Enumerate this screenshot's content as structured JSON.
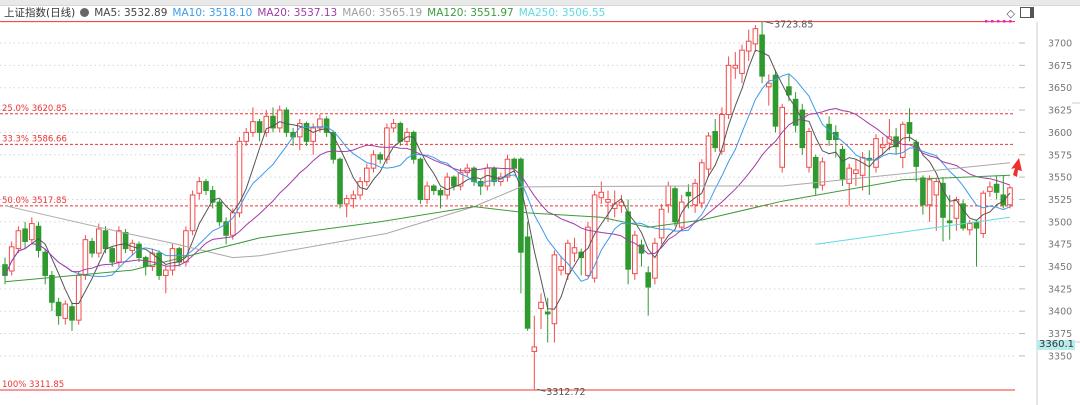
{
  "legend": {
    "title": "上证指数(日线)",
    "ma5": "MA5: 3532.89",
    "ma10": "MA10: 3518.10",
    "ma20": "MA20: 3537.13",
    "ma60": "MA60: 3565.19",
    "ma120": "MA120: 3551.97",
    "ma250": "MA250: 3506.55"
  },
  "price_tag": "3360.1",
  "chart_data": {
    "type": "candlestick",
    "title": "上证指数(日线)",
    "ylim": [
      3330,
      3735
    ],
    "y_ticks": [
      3350,
      3375,
      3400,
      3425,
      3450,
      3475,
      3500,
      3525,
      3550,
      3575,
      3600,
      3625,
      3650,
      3675,
      3700
    ],
    "grid": "horizontal-dotted",
    "colors": {
      "up": "#f24b4b",
      "down": "#2f9a2f",
      "ma5": "#555555",
      "ma10": "#3d9be9",
      "ma20": "#a23ba8",
      "ma60": "#a9a9a9",
      "ma120": "#3c9b3c",
      "ma250": "#5fd9e2",
      "fib": "#ee3333"
    },
    "fibonacci": [
      {
        "label": "",
        "value": 3723.85,
        "style": "solid"
      },
      {
        "label": "25.0% 3620.85",
        "value": 3620.85,
        "style": "dashed"
      },
      {
        "label": "33.3% 3586.66",
        "value": 3586.66,
        "style": "dashed"
      },
      {
        "label": "50.0% 3517.85",
        "value": 3517.85,
        "style": "dashed"
      },
      {
        "label": "100% 3311.85",
        "value": 3311.85,
        "style": "solid"
      }
    ],
    "annotations": [
      {
        "text": "3723.85",
        "bar": 113,
        "value": 3723.85
      },
      {
        "text": "3312.72",
        "bar": 79,
        "value": 3312.72
      }
    ],
    "ohlc": [
      [
        3452,
        3460,
        3430,
        3440
      ],
      [
        3445,
        3478,
        3440,
        3472
      ],
      [
        3470,
        3495,
        3465,
        3490
      ],
      [
        3492,
        3500,
        3470,
        3478
      ],
      [
        3480,
        3505,
        3475,
        3498
      ],
      [
        3495,
        3500,
        3460,
        3468
      ],
      [
        3466,
        3470,
        3430,
        3440
      ],
      [
        3440,
        3445,
        3400,
        3410
      ],
      [
        3410,
        3415,
        3385,
        3395
      ],
      [
        3392,
        3412,
        3385,
        3408
      ],
      [
        3405,
        3410,
        3378,
        3390
      ],
      [
        3390,
        3445,
        3385,
        3440
      ],
      [
        3440,
        3485,
        3435,
        3480
      ],
      [
        3478,
        3482,
        3460,
        3465
      ],
      [
        3465,
        3498,
        3460,
        3492
      ],
      [
        3490,
        3495,
        3465,
        3470
      ],
      [
        3470,
        3472,
        3450,
        3455
      ],
      [
        3455,
        3495,
        3450,
        3490
      ],
      [
        3488,
        3492,
        3465,
        3470
      ],
      [
        3468,
        3480,
        3462,
        3476
      ],
      [
        3475,
        3478,
        3455,
        3460
      ],
      [
        3460,
        3462,
        3440,
        3450
      ],
      [
        3450,
        3470,
        3445,
        3465
      ],
      [
        3465,
        3468,
        3435,
        3440
      ],
      [
        3440,
        3450,
        3420,
        3446
      ],
      [
        3446,
        3475,
        3440,
        3470
      ],
      [
        3470,
        3472,
        3450,
        3455
      ],
      [
        3455,
        3495,
        3450,
        3490
      ],
      [
        3490,
        3535,
        3485,
        3530
      ],
      [
        3532,
        3550,
        3525,
        3545
      ],
      [
        3545,
        3548,
        3530,
        3535
      ],
      [
        3535,
        3540,
        3515,
        3522
      ],
      [
        3522,
        3525,
        3495,
        3500
      ],
      [
        3500,
        3505,
        3475,
        3485
      ],
      [
        3485,
        3515,
        3480,
        3510
      ],
      [
        3510,
        3595,
        3505,
        3590
      ],
      [
        3590,
        3605,
        3585,
        3600
      ],
      [
        3600,
        3628,
        3595,
        3612
      ],
      [
        3612,
        3615,
        3590,
        3600
      ],
      [
        3600,
        3625,
        3595,
        3618
      ],
      [
        3618,
        3628,
        3600,
        3605
      ],
      [
        3605,
        3630,
        3600,
        3625
      ],
      [
        3625,
        3628,
        3595,
        3600
      ],
      [
        3600,
        3605,
        3585,
        3595
      ],
      [
        3595,
        3615,
        3580,
        3610
      ],
      [
        3610,
        3612,
        3585,
        3590
      ],
      [
        3590,
        3610,
        3575,
        3605
      ],
      [
        3605,
        3620,
        3600,
        3615
      ],
      [
        3615,
        3618,
        3595,
        3600
      ],
      [
        3600,
        3602,
        3565,
        3570
      ],
      [
        3570,
        3572,
        3515,
        3520
      ],
      [
        3520,
        3530,
        3505,
        3526
      ],
      [
        3526,
        3535,
        3515,
        3530
      ],
      [
        3530,
        3550,
        3525,
        3545
      ],
      [
        3545,
        3565,
        3540,
        3560
      ],
      [
        3560,
        3580,
        3555,
        3575
      ],
      [
        3575,
        3578,
        3565,
        3570
      ],
      [
        3570,
        3610,
        3565,
        3605
      ],
      [
        3605,
        3615,
        3600,
        3610
      ],
      [
        3610,
        3612,
        3585,
        3590
      ],
      [
        3590,
        3605,
        3585,
        3600
      ],
      [
        3600,
        3602,
        3565,
        3570
      ],
      [
        3570,
        3572,
        3520,
        3525
      ],
      [
        3525,
        3545,
        3520,
        3540
      ],
      [
        3540,
        3542,
        3530,
        3535
      ],
      [
        3535,
        3538,
        3515,
        3530
      ],
      [
        3530,
        3555,
        3525,
        3550
      ],
      [
        3550,
        3552,
        3535,
        3540
      ],
      [
        3540,
        3560,
        3535,
        3555
      ],
      [
        3555,
        3565,
        3550,
        3560
      ],
      [
        3560,
        3562,
        3540,
        3545
      ],
      [
        3545,
        3548,
        3530,
        3540
      ],
      [
        3540,
        3565,
        3535,
        3560
      ],
      [
        3560,
        3562,
        3540,
        3545
      ],
      [
        3545,
        3555,
        3540,
        3550
      ],
      [
        3550,
        3575,
        3545,
        3570
      ],
      [
        3570,
        3572,
        3555,
        3560
      ],
      [
        3570,
        3572,
        3420,
        3466
      ],
      [
        3483,
        3500,
        3378,
        3381
      ],
      [
        3355,
        3395,
        3312.72,
        3360
      ],
      [
        3403,
        3420,
        3380,
        3410
      ],
      [
        3399,
        3415,
        3365,
        3397
      ],
      [
        3386,
        3468,
        3365,
        3463
      ],
      [
        3446,
        3462,
        3440,
        3450
      ],
      [
        3442,
        3480,
        3435,
        3476
      ],
      [
        3465,
        3482,
        3455,
        3471
      ],
      [
        3466,
        3470,
        3440,
        3460
      ],
      [
        3440,
        3500,
        3438,
        3494
      ],
      [
        3437,
        3535,
        3432,
        3530
      ],
      [
        3527,
        3545,
        3520,
        3533
      ],
      [
        3522,
        3535,
        3500,
        3525
      ],
      [
        3515,
        3535,
        3505,
        3520
      ],
      [
        3518,
        3530,
        3510,
        3522
      ],
      [
        3511,
        3525,
        3430,
        3447
      ],
      [
        3442,
        3490,
        3435,
        3485
      ],
      [
        3474,
        3480,
        3450,
        3465
      ],
      [
        3443,
        3450,
        3395,
        3427
      ],
      [
        3437,
        3482,
        3430,
        3476
      ],
      [
        3482,
        3520,
        3475,
        3514
      ],
      [
        3519,
        3545,
        3510,
        3540
      ],
      [
        3537,
        3540,
        3495,
        3500
      ],
      [
        3494,
        3530,
        3490,
        3522
      ],
      [
        3533,
        3542,
        3515,
        3529
      ],
      [
        3519,
        3548,
        3510,
        3543
      ],
      [
        3521,
        3570,
        3515,
        3566
      ],
      [
        3559,
        3600,
        3550,
        3596
      ],
      [
        3601,
        3615,
        3578,
        3583
      ],
      [
        3579,
        3628,
        3575,
        3620
      ],
      [
        3620,
        3685,
        3615,
        3675
      ],
      [
        3672,
        3690,
        3660,
        3675
      ],
      [
        3666,
        3698,
        3655,
        3692
      ],
      [
        3691,
        3715,
        3680,
        3702
      ],
      [
        3699,
        3720,
        3690,
        3716
      ],
      [
        3709,
        3723.85,
        3655,
        3663
      ],
      [
        3651,
        3665,
        3630,
        3655
      ],
      [
        3664,
        3670,
        3600,
        3607
      ],
      [
        3561,
        3632,
        3555,
        3628
      ],
      [
        3651,
        3665,
        3635,
        3642
      ],
      [
        3637,
        3645,
        3600,
        3608
      ],
      [
        3625,
        3632,
        3575,
        3583
      ],
      [
        3561,
        3605,
        3555,
        3601
      ],
      [
        3572,
        3575,
        3530,
        3538
      ],
      [
        3541,
        3572,
        3535,
        3567
      ],
      [
        3609,
        3618,
        3585,
        3592
      ],
      [
        3600,
        3608,
        3572,
        3592
      ],
      [
        3581,
        3585,
        3540,
        3548
      ],
      [
        3543,
        3565,
        3518,
        3560
      ],
      [
        3554,
        3570,
        3540,
        3558
      ],
      [
        3552,
        3578,
        3535,
        3572
      ],
      [
        3571,
        3580,
        3530,
        3569
      ],
      [
        3561,
        3598,
        3555,
        3593
      ],
      [
        3583,
        3595,
        3575,
        3586
      ],
      [
        3588,
        3615,
        3580,
        3595
      ],
      [
        3595,
        3605,
        3575,
        3584
      ],
      [
        3572,
        3612,
        3560,
        3609
      ],
      [
        3611,
        3627,
        3590,
        3599
      ],
      [
        3589,
        3592,
        3545,
        3562
      ],
      [
        3549,
        3552,
        3508,
        3519
      ],
      [
        3519,
        3552,
        3500,
        3547
      ],
      [
        3530,
        3548,
        3490,
        3545
      ],
      [
        3543,
        3550,
        3478,
        3505
      ],
      [
        3501,
        3530,
        3480,
        3499
      ],
      [
        3504,
        3528,
        3490,
        3525
      ],
      [
        3520,
        3525,
        3490,
        3493
      ],
      [
        3491,
        3502,
        3485,
        3498
      ],
      [
        3499,
        3502,
        3450,
        3493
      ],
      [
        3487,
        3535,
        3482,
        3532
      ],
      [
        3534,
        3545,
        3528,
        3539
      ],
      [
        3542,
        3552,
        3525,
        3533
      ],
      [
        3530,
        3552,
        3515,
        3519
      ],
      [
        3519,
        3540,
        3515,
        3538
      ]
    ],
    "moving_averages_computed": [
      "ma5",
      "ma10",
      "ma20"
    ],
    "ma60": [
      {
        "bar": 0,
        "value": 3518
      },
      {
        "bar": 14,
        "value": 3494
      },
      {
        "bar": 25,
        "value": 3476
      },
      {
        "bar": 34,
        "value": 3460
      },
      {
        "bar": 38,
        "value": 3462
      },
      {
        "bar": 57,
        "value": 3487
      },
      {
        "bar": 70,
        "value": 3517
      },
      {
        "bar": 77,
        "value": 3539
      },
      {
        "bar": 102,
        "value": 3540
      },
      {
        "bar": 116,
        "value": 3540
      },
      {
        "bar": 150,
        "value": 3566
      }
    ],
    "ma120": [
      {
        "bar": 0,
        "value": 3433
      },
      {
        "bar": 19,
        "value": 3446
      },
      {
        "bar": 38,
        "value": 3482
      },
      {
        "bar": 56,
        "value": 3500
      },
      {
        "bar": 70,
        "value": 3517
      },
      {
        "bar": 78,
        "value": 3510
      },
      {
        "bar": 89,
        "value": 3505
      },
      {
        "bar": 96,
        "value": 3494
      },
      {
        "bar": 104,
        "value": 3502
      },
      {
        "bar": 116,
        "value": 3523
      },
      {
        "bar": 134,
        "value": 3547
      },
      {
        "bar": 150,
        "value": 3552
      }
    ],
    "ma250": [
      {
        "bar": 121,
        "value": 3475
      },
      {
        "bar": 150,
        "value": 3505
      }
    ]
  }
}
